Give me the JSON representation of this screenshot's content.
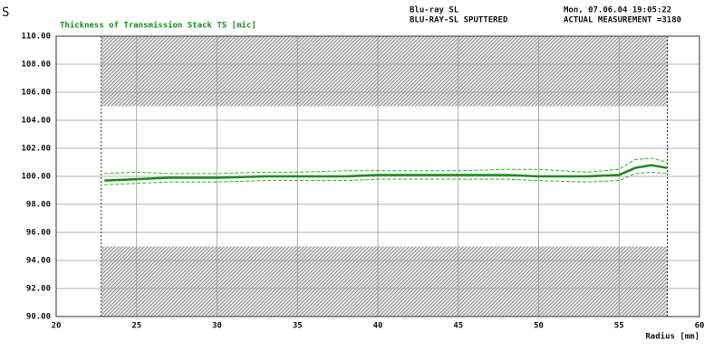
{
  "chart_data": {
    "type": "line",
    "corner_mark": "S",
    "title": "Thickness of Transmission Stack TS [mic]",
    "header_left": [
      "Blu-ray SL",
      "BLU-RAY-SL SPUTTERED"
    ],
    "header_right": [
      "Mon, 07.06.04 19:05:22",
      "ACTUAL MEASUREMENT =3180"
    ],
    "xlabel": "Radius [mm]",
    "xlim": [
      20,
      60
    ],
    "ylim": [
      90,
      110
    ],
    "xticks": [
      20,
      25,
      30,
      35,
      40,
      45,
      50,
      55,
      60
    ],
    "yticks": [
      {
        "value": 90,
        "label": "90.00"
      },
      {
        "value": 92,
        "label": "92.00"
      },
      {
        "value": 94,
        "label": "94.00"
      },
      {
        "value": 96,
        "label": "96.00"
      },
      {
        "value": 98,
        "label": "98.00"
      },
      {
        "value": 100,
        "label": "100.00"
      },
      {
        "value": 102,
        "label": "102.00"
      },
      {
        "value": 104,
        "label": "104.00"
      },
      {
        "value": 106,
        "label": "106.00"
      },
      {
        "value": 108,
        "label": "108.00"
      },
      {
        "value": 110,
        "label": "110.00"
      }
    ],
    "grid": true,
    "limit_bands": [
      {
        "x": [
          22.8,
          58
        ],
        "y": [
          105,
          110
        ]
      },
      {
        "x": [
          22.8,
          58
        ],
        "y": [
          90,
          95
        ]
      }
    ],
    "x": [
      23,
      25,
      27,
      30,
      33,
      35,
      38,
      40,
      43,
      45,
      48,
      50,
      53,
      55,
      56,
      57,
      58
    ],
    "series": [
      {
        "color": "#1a8a1a",
        "width": 2.5,
        "dashed": false,
        "values": [
          99.7,
          99.8,
          99.9,
          99.9,
          100.0,
          100.0,
          100.0,
          100.1,
          100.1,
          100.1,
          100.1,
          100.0,
          100.0,
          100.1,
          100.6,
          100.8,
          100.6
        ]
      },
      {
        "color": "#33b033",
        "width": 1,
        "dashed": true,
        "values": [
          100.2,
          100.3,
          100.2,
          100.2,
          100.3,
          100.3,
          100.4,
          100.4,
          100.4,
          100.4,
          100.5,
          100.5,
          100.3,
          100.5,
          101.2,
          101.3,
          101.0
        ]
      },
      {
        "color": "#33b033",
        "width": 1,
        "dashed": true,
        "values": [
          99.4,
          99.5,
          99.6,
          99.6,
          99.7,
          99.7,
          99.7,
          99.8,
          99.8,
          99.8,
          99.8,
          99.7,
          99.6,
          99.7,
          100.2,
          100.3,
          100.2
        ]
      }
    ]
  }
}
